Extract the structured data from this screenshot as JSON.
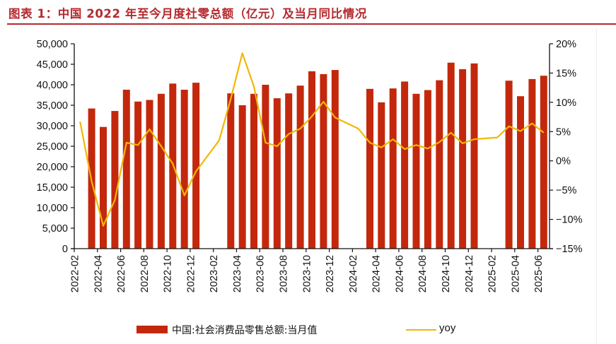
{
  "title": "图表 1：中国 2022 年至今月度社零总额（亿元）及当月同比情况",
  "colors": {
    "bar": "#c3280d",
    "line": "#f2b705",
    "title": "#b52a2f",
    "axis": "#111111"
  },
  "chart_data": {
    "type": "bar+line",
    "title": "图表 1：中国 2022 年至今月度社零总额（亿元）及当月同比情况",
    "x": [
      "2022-02",
      "2022-03",
      "2022-04",
      "2022-05",
      "2022-06",
      "2022-07",
      "2022-08",
      "2022-09",
      "2022-10",
      "2022-11",
      "2022-12",
      "2023-01",
      "2023-02",
      "2023-03",
      "2023-04",
      "2023-05",
      "2023-06",
      "2023-07",
      "2023-08",
      "2023-09",
      "2023-10",
      "2023-11",
      "2023-12",
      "2024-01",
      "2024-02",
      "2024-03",
      "2024-04",
      "2024-05",
      "2024-06",
      "2024-07",
      "2024-08",
      "2024-09",
      "2024-10",
      "2024-11",
      "2024-12",
      "2025-01",
      "2025-02",
      "2025-03",
      "2025-04",
      "2025-05",
      "2025-06"
    ],
    "x_tick_labels": [
      "2022-02",
      "2022-04",
      "2022-06",
      "2022-08",
      "2022-10",
      "2022-12",
      "2023-02",
      "2023-04",
      "2023-06",
      "2023-08",
      "2023-10",
      "2023-12",
      "2024-02",
      "2024-04",
      "2024-06",
      "2024-08",
      "2024-10",
      "2024-12",
      "2025-02",
      "2025-04",
      "2025-06"
    ],
    "series": [
      {
        "name": "中国:社会消费品零售总额:当月值",
        "type": "bar",
        "axis": "left",
        "values": [
          null,
          34200,
          29700,
          33600,
          38800,
          35900,
          36300,
          37800,
          40300,
          38800,
          40500,
          null,
          null,
          37900,
          35000,
          37800,
          40000,
          36700,
          37900,
          39800,
          43300,
          42600,
          43600,
          null,
          null,
          39000,
          35700,
          39100,
          40800,
          37800,
          38700,
          41100,
          45400,
          43800,
          45200,
          null,
          null,
          41000,
          37200,
          41400,
          42200
        ]
      },
      {
        "name": "yoy",
        "type": "line",
        "axis": "right",
        "values": [
          6.7,
          -3.5,
          -11.1,
          -6.7,
          3.1,
          2.7,
          5.4,
          2.5,
          -0.5,
          -5.9,
          -1.8,
          null,
          3.5,
          10.6,
          18.4,
          12.7,
          3.1,
          2.5,
          4.6,
          5.5,
          7.6,
          10.1,
          7.4,
          null,
          5.5,
          3.1,
          2.3,
          3.7,
          2.0,
          2.7,
          2.1,
          3.2,
          4.8,
          3.0,
          3.7,
          null,
          4.0,
          5.9,
          5.1,
          6.4,
          4.8
        ]
      }
    ],
    "y_left": {
      "ylim": [
        0,
        50000
      ],
      "ticks": [
        0,
        5000,
        10000,
        15000,
        20000,
        25000,
        30000,
        35000,
        40000,
        45000,
        50000
      ],
      "tick_labels": [
        "0",
        "5,000",
        "10,000",
        "15,000",
        "20,000",
        "25,000",
        "30,000",
        "35,000",
        "40,000",
        "45,000",
        "50,000"
      ]
    },
    "y_right": {
      "ylim": [
        -15,
        20
      ],
      "ticks": [
        -15,
        -10,
        -5,
        0,
        5,
        10,
        15,
        20
      ],
      "tick_labels": [
        "−15%",
        "−10%",
        "−5%",
        "0%",
        "5%",
        "10%",
        "15%",
        "20%"
      ]
    },
    "xlabel": "",
    "ylabel": "",
    "grid": false,
    "legend": {
      "position": "bottom",
      "items": [
        "中国:社会消费品零售总额:当月值",
        "yoy"
      ]
    }
  }
}
